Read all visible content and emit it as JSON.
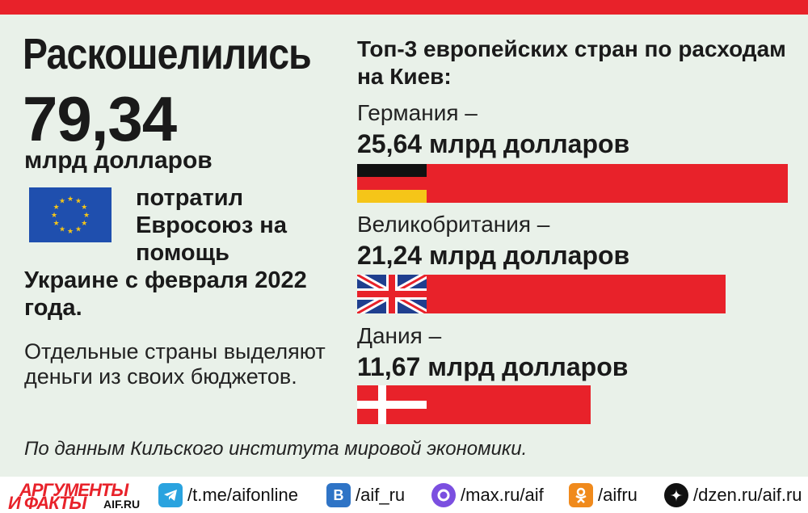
{
  "headline": "Раскошелились",
  "total": {
    "value": "79,34",
    "unit": "млрд долларов"
  },
  "eu": {
    "text_short": "потратил Евросоюз на помощь",
    "text_long": "Украине с февраля 2022 года."
  },
  "note": "Отдельные страны выделяют деньги из своих бюджетов.",
  "top3_title": "Топ-3 европейских стран по расходам на Киев:",
  "chart_data": {
    "type": "bar",
    "orientation": "horizontal",
    "title": "Топ-3 европейских стран по расходам на Киев:",
    "categories": [
      "Германия",
      "Великобритания",
      "Дания"
    ],
    "values": [
      25.64,
      21.24,
      11.67
    ],
    "unit": "млрд долларов",
    "labels": [
      {
        "country": "Германия –",
        "amount": "25,64 млрд долларов",
        "flag": "germany-flag-icon"
      },
      {
        "country": "Великобритания –",
        "amount": "21,24 млрд долларов",
        "flag": "uk-flag-icon"
      },
      {
        "country": "Дания –",
        "amount": "11,67 млрд долларов",
        "flag": "denmark-flag-icon"
      }
    ],
    "bar_color": "#e8222a"
  },
  "source": "По данным Кильского института мировой экономики.",
  "footer": {
    "logo_line1": "АРГУМЕНТЫ",
    "logo_line2": "И ФАКТЫ",
    "logo_site": "AIF.RU",
    "links": [
      {
        "icon": "telegram-icon",
        "text": "/t.me/aifonline",
        "color": "#2aa3df"
      },
      {
        "icon": "vk-icon",
        "text": "/aif_ru",
        "color": "#2f74c6"
      },
      {
        "icon": "max-icon",
        "text": "/max.ru/aif",
        "color": "#7b4fe0"
      },
      {
        "icon": "ok-icon",
        "text": "/aifru",
        "color": "#f08a1c"
      },
      {
        "icon": "dzen-icon",
        "text": "/dzen.ru/aif.ru",
        "color": "#111111"
      }
    ]
  }
}
